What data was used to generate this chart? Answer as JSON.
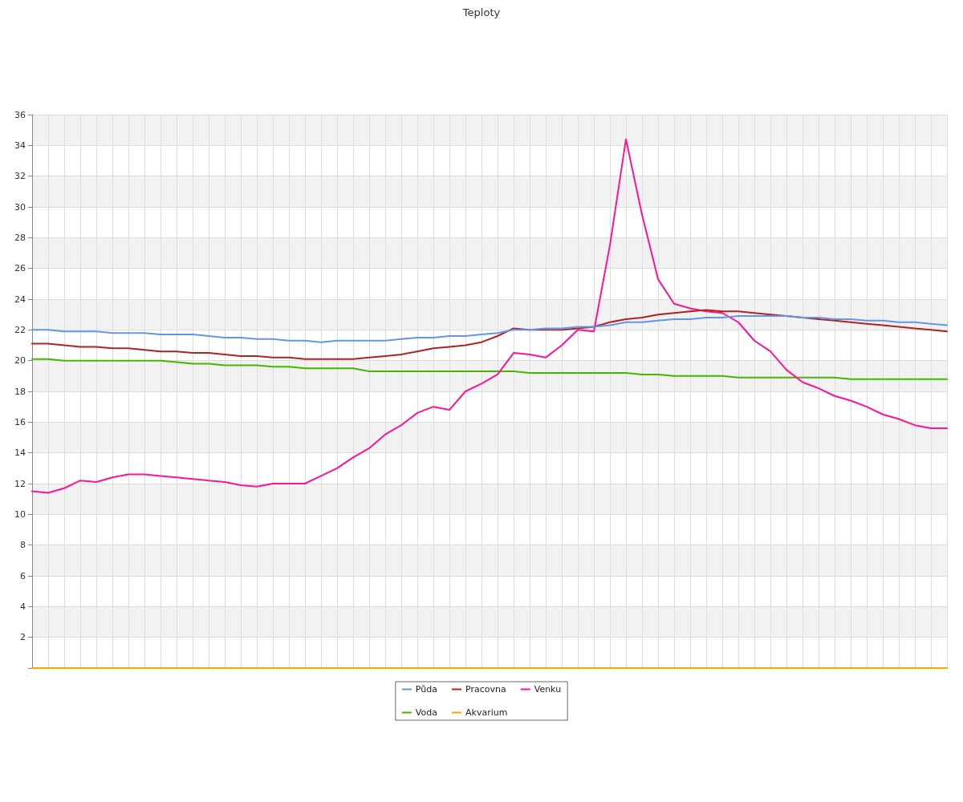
{
  "chart_data": {
    "type": "line",
    "title": "Teploty",
    "categories": [
      null,
      null,
      null,
      null,
      null,
      null,
      null,
      null,
      null,
      null,
      null,
      null,
      null,
      null,
      null,
      null,
      null,
      null,
      null,
      null,
      null,
      null,
      null,
      null,
      null,
      null,
      null,
      null,
      null,
      null,
      null,
      null,
      null,
      null,
      null,
      null,
      null,
      null,
      null,
      null,
      null,
      null,
      null,
      null,
      null,
      null,
      null,
      null,
      null,
      null,
      null,
      null,
      null,
      null,
      null,
      null,
      null,
      null
    ],
    "series": [
      {
        "name": "Půda",
        "color": "#6495ed",
        "values": [
          22.0,
          22.0,
          21.9,
          21.9,
          21.9,
          21.8,
          21.8,
          21.8,
          21.7,
          21.7,
          21.7,
          21.6,
          21.5,
          21.5,
          21.4,
          21.4,
          21.3,
          21.3,
          21.2,
          21.3,
          21.3,
          21.3,
          21.3,
          21.4,
          21.5,
          21.5,
          21.6,
          21.6,
          21.7,
          21.8,
          22.0,
          22.0,
          22.1,
          22.1,
          22.2,
          22.2,
          22.3,
          22.5,
          22.5,
          22.6,
          22.7,
          22.7,
          22.8,
          22.8,
          22.9,
          22.9,
          22.9,
          22.9,
          22.8,
          22.8,
          22.7,
          22.7,
          22.6,
          22.6,
          22.5,
          22.5,
          22.4,
          22.3
        ]
      },
      {
        "name": "Pracovna",
        "color": "#b22222",
        "values": [
          21.1,
          21.1,
          21.0,
          20.9,
          20.9,
          20.8,
          20.8,
          20.7,
          20.6,
          20.6,
          20.5,
          20.5,
          20.4,
          20.3,
          20.3,
          20.2,
          20.2,
          20.1,
          20.1,
          20.1,
          20.1,
          20.2,
          20.3,
          20.4,
          20.6,
          20.8,
          20.9,
          21.0,
          21.2,
          21.6,
          22.1,
          22.0,
          22.0,
          22.0,
          22.1,
          22.2,
          22.5,
          22.7,
          22.8,
          23.0,
          23.1,
          23.2,
          23.3,
          23.2,
          23.2,
          23.1,
          23.0,
          22.9,
          22.8,
          22.7,
          22.6,
          22.5,
          22.4,
          22.3,
          22.2,
          22.1,
          22.0,
          21.9
        ]
      },
      {
        "name": "Venku",
        "color": "#ff1493",
        "values": [
          11.5,
          11.4,
          11.7,
          12.2,
          12.1,
          12.4,
          12.6,
          12.6,
          12.5,
          12.4,
          12.3,
          12.2,
          12.1,
          11.9,
          11.8,
          12.0,
          12.0,
          12.0,
          12.5,
          13.0,
          13.7,
          14.3,
          15.2,
          15.8,
          16.6,
          17.0,
          16.8,
          18.0,
          18.5,
          19.1,
          20.5,
          20.4,
          20.2,
          21.0,
          22.0,
          21.9,
          27.5,
          34.4,
          29.5,
          25.3,
          23.7,
          23.4,
          23.2,
          23.1,
          22.5,
          21.3,
          20.6,
          19.4,
          18.6,
          18.2,
          17.7,
          17.4,
          17.0,
          16.5,
          16.2,
          15.8,
          15.6,
          15.6
        ]
      },
      {
        "name": "Voda",
        "color": "#44b700",
        "values": [
          20.1,
          20.1,
          20.0,
          20.0,
          20.0,
          20.0,
          20.0,
          20.0,
          20.0,
          19.9,
          19.8,
          19.8,
          19.7,
          19.7,
          19.7,
          19.6,
          19.6,
          19.5,
          19.5,
          19.5,
          19.5,
          19.3,
          19.3,
          19.3,
          19.3,
          19.3,
          19.3,
          19.3,
          19.3,
          19.3,
          19.3,
          19.2,
          19.2,
          19.2,
          19.2,
          19.2,
          19.2,
          19.2,
          19.1,
          19.1,
          19.0,
          19.0,
          19.0,
          19.0,
          18.9,
          18.9,
          18.9,
          18.9,
          18.9,
          18.9,
          18.9,
          18.8,
          18.8,
          18.8,
          18.8,
          18.8,
          18.8,
          18.8
        ]
      },
      {
        "name": "Akvarium",
        "color": "#ffa500",
        "values": [
          0,
          0,
          0,
          0,
          0,
          0,
          0,
          0,
          0,
          0,
          0,
          0,
          0,
          0,
          0,
          0,
          0,
          0,
          0,
          0,
          0,
          0,
          0,
          0,
          0,
          0,
          0,
          0,
          0,
          0,
          0,
          0,
          0,
          0,
          0,
          0,
          0,
          0,
          0,
          0,
          0,
          0,
          0,
          0,
          0,
          0,
          0,
          0,
          0,
          0,
          0,
          0,
          0,
          0,
          0,
          0,
          0,
          0
        ]
      }
    ],
    "ylim": [
      0,
      36
    ],
    "yticks": [
      {
        "value": 0,
        "label": null
      },
      2,
      4,
      6,
      8,
      10,
      12,
      14,
      16,
      18,
      20,
      22,
      24,
      26,
      28,
      30,
      32,
      34,
      36
    ],
    "grid": true,
    "legend": "bottom",
    "marker": "none",
    "line_style": "solid",
    "tick_labels": "y"
  }
}
